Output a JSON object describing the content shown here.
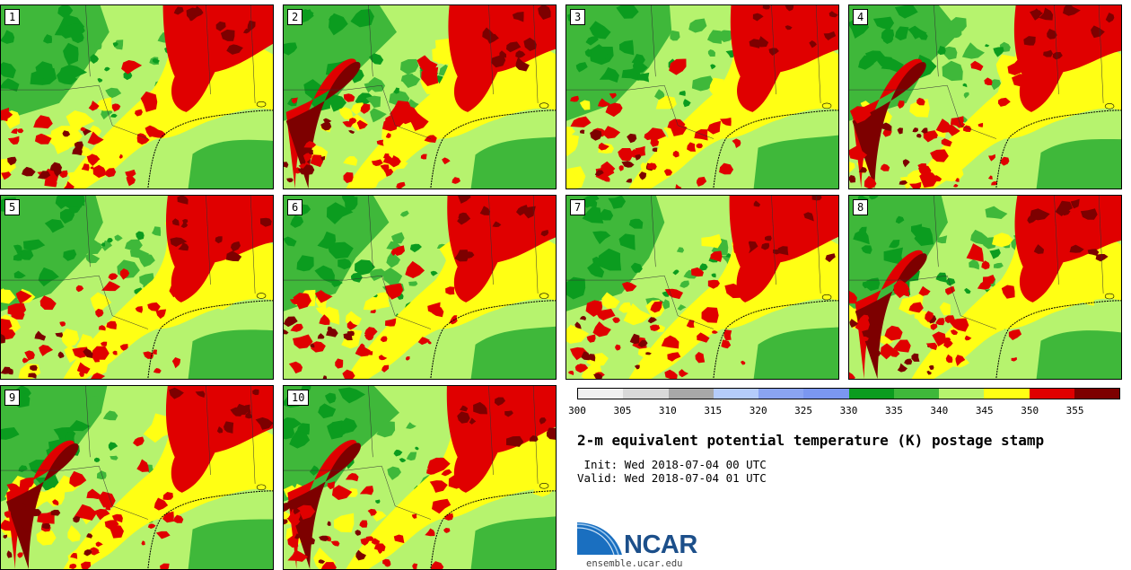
{
  "panels": [
    {
      "label": "1"
    },
    {
      "label": "2"
    },
    {
      "label": "3"
    },
    {
      "label": "4"
    },
    {
      "label": "5"
    },
    {
      "label": "6"
    },
    {
      "label": "7"
    },
    {
      "label": "8"
    },
    {
      "label": "9"
    },
    {
      "label": "10"
    }
  ],
  "colorbar": {
    "colors": [
      "#f0f0f0",
      "#d9d9d9",
      "#a8a8a8",
      "#b5ccfa",
      "#8aa4f2",
      "#7b97f0",
      "#0b9c1f",
      "#3fb83a",
      "#b6f36e",
      "#ffff14",
      "#e00000",
      "#7d0000"
    ],
    "ticks": [
      "300",
      "305",
      "310",
      "315",
      "320",
      "325",
      "330",
      "335",
      "340",
      "345",
      "350",
      "355"
    ]
  },
  "title": "2-m equivalent potential temperature (K) postage stamp",
  "init_text": " Init: Wed 2018-07-04 00 UTC",
  "valid_text": "Valid: Wed 2018-07-04 01 UTC",
  "logo": {
    "text": "NCAR",
    "color": "#1c4f8a"
  },
  "url": "ensemble.ucar.edu"
}
